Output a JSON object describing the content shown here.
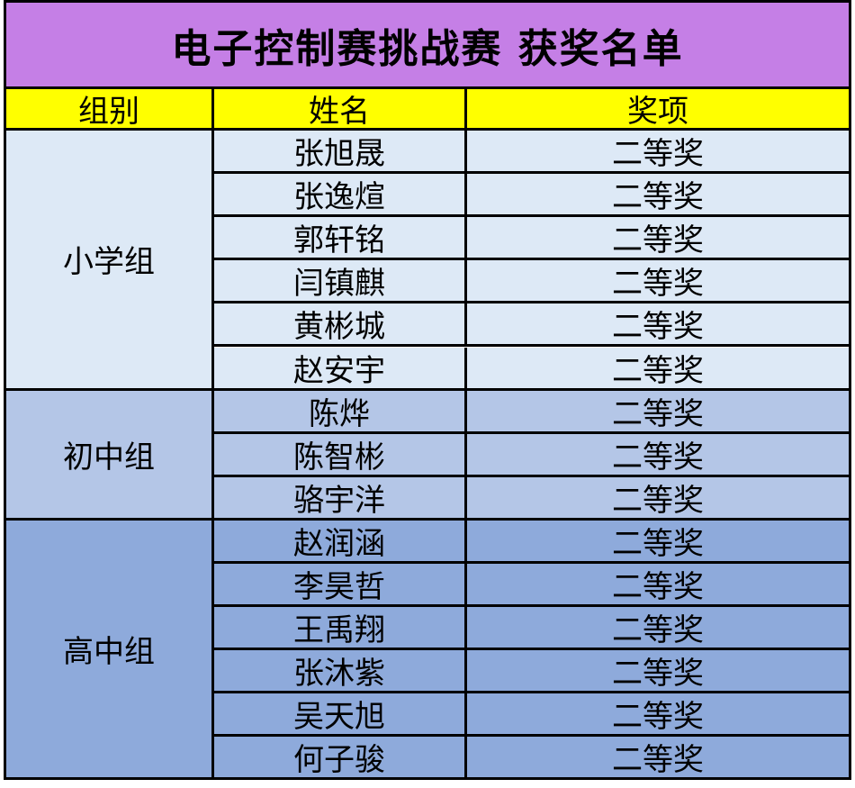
{
  "title": "电子控制赛挑战赛  获奖名单",
  "headers": [
    "组别",
    "姓名",
    "奖项"
  ],
  "colors": {
    "title_bg": "#c57fe6",
    "header_bg": "#ffff00",
    "primary_bg": "#dde9f6",
    "junior_bg": "#b4c6e7",
    "senior_bg": "#8eaadb"
  },
  "groups": [
    {
      "name": "小学组",
      "color": "#dde9f6",
      "rows": [
        {
          "name": "张旭晟",
          "award": "二等奖"
        },
        {
          "name": "张逸煊",
          "award": "二等奖"
        },
        {
          "name": "郭轩铭",
          "award": "二等奖"
        },
        {
          "name": "闫镇麒",
          "award": "二等奖"
        },
        {
          "name": "黄彬城",
          "award": "二等奖"
        },
        {
          "name": "赵安宇",
          "award": "二等奖"
        }
      ]
    },
    {
      "name": "初中组",
      "color": "#b4c6e7",
      "rows": [
        {
          "name": "陈烨",
          "award": "二等奖"
        },
        {
          "name": "陈智彬",
          "award": "二等奖"
        },
        {
          "name": "骆宇洋",
          "award": "二等奖"
        }
      ]
    },
    {
      "name": "高中组",
      "color": "#8eaadb",
      "rows": [
        {
          "name": "赵润涵",
          "award": "二等奖"
        },
        {
          "name": "李昊哲",
          "award": "二等奖"
        },
        {
          "name": "王禹翔",
          "award": "二等奖"
        },
        {
          "name": "张沐紫",
          "award": "二等奖"
        },
        {
          "name": "吴天旭",
          "award": "二等奖"
        },
        {
          "name": "何子骏",
          "award": "二等奖"
        }
      ]
    }
  ]
}
